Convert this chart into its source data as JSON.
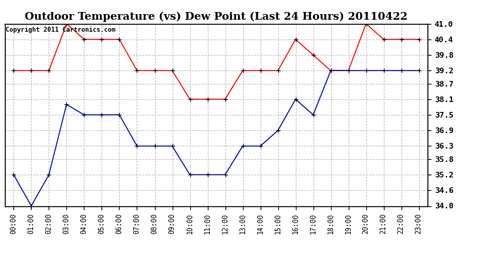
{
  "title": "Outdoor Temperature (vs) Dew Point (Last 24 Hours) 20110422",
  "copyright_text": "Copyright 2011 Cartronics.com",
  "hours": [
    "00:00",
    "01:00",
    "02:00",
    "03:00",
    "04:00",
    "05:00",
    "06:00",
    "07:00",
    "08:00",
    "09:00",
    "10:00",
    "11:00",
    "12:00",
    "13:00",
    "14:00",
    "15:00",
    "16:00",
    "17:00",
    "18:00",
    "19:00",
    "20:00",
    "21:00",
    "22:00",
    "23:00"
  ],
  "red_temp": [
    39.2,
    39.2,
    39.2,
    41.0,
    40.4,
    40.4,
    40.4,
    39.2,
    39.2,
    39.2,
    38.1,
    38.1,
    38.1,
    39.2,
    39.2,
    39.2,
    40.4,
    39.8,
    39.2,
    39.2,
    41.0,
    40.4,
    40.4,
    40.4
  ],
  "blue_dew": [
    35.2,
    34.0,
    35.2,
    37.9,
    37.5,
    37.5,
    37.5,
    36.3,
    36.3,
    36.3,
    35.2,
    35.2,
    35.2,
    36.3,
    36.3,
    36.9,
    38.1,
    37.5,
    39.2,
    39.2,
    39.2,
    39.2,
    39.2,
    39.2
  ],
  "red_color": "#ff0000",
  "blue_color": "#0000cc",
  "bg_color": "#ffffff",
  "grid_color": "#bbbbbb",
  "ylim_min": 34.0,
  "ylim_max": 41.0,
  "yticks": [
    34.0,
    34.6,
    35.2,
    35.8,
    36.3,
    36.9,
    37.5,
    38.1,
    38.7,
    39.2,
    39.8,
    40.4,
    41.0
  ],
  "title_fontsize": 11,
  "copyright_fontsize": 6.5,
  "tick_fontsize": 7,
  "ytick_fontsize": 8
}
